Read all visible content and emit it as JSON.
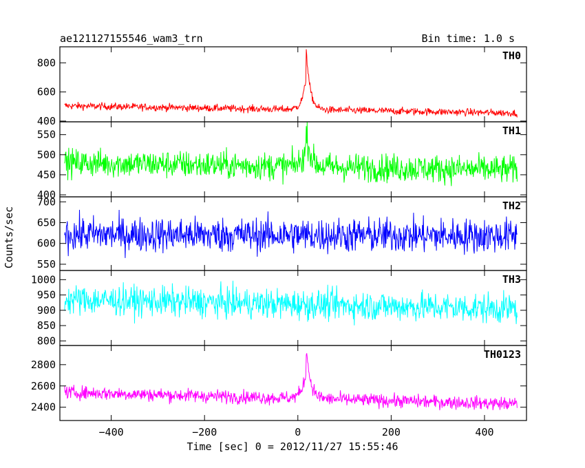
{
  "header": {
    "title": "ae121127155546_wam3_trn",
    "bin_time": "Bin time: 1.0 s"
  },
  "axes": {
    "xlabel": "Time [sec] 0 = 2012/11/27 15:55:46",
    "ylabel": "Counts/sec"
  },
  "chart_data": {
    "type": "line",
    "title": "ae121127155546_wam3_trn",
    "xlabel": "Time [sec] 0 = 2012/11/27 15:55:46",
    "ylabel": "Counts/sec",
    "xlim": [
      -510,
      490
    ],
    "x_ticks": [
      -400,
      -200,
      0,
      200,
      400
    ],
    "x_range_data": [
      -500,
      470
    ],
    "bin_time_s": 1.0,
    "panels": [
      {
        "name": "TH0",
        "color": "#ff0000",
        "ylim": [
          395,
          910
        ],
        "yticks": [
          400,
          600,
          800
        ],
        "baseline_start": 505,
        "baseline_end": 455,
        "noise": 18,
        "peak": {
          "time": 18,
          "value": 900,
          "width": 8
        }
      },
      {
        "name": "TH1",
        "color": "#00ff00",
        "ylim": [
          395,
          582
        ],
        "yticks": [
          400,
          450,
          500,
          550
        ],
        "baseline_start": 480,
        "baseline_end": 462,
        "noise": 25,
        "peak": {
          "time": 18,
          "value": 560,
          "width": 9
        }
      },
      {
        "name": "TH2",
        "color": "#0000ff",
        "ylim": [
          535,
          712
        ],
        "yticks": [
          550,
          600,
          650,
          700
        ],
        "baseline_start": 622,
        "baseline_end": 618,
        "noise": 30,
        "peak": null
      },
      {
        "name": "TH3",
        "color": "#00ffff",
        "ylim": [
          785,
          1030
        ],
        "yticks": [
          800,
          850,
          900,
          950,
          1000
        ],
        "baseline_start": 935,
        "baseline_end": 905,
        "noise": 35,
        "peak": null
      },
      {
        "name": "TH0123",
        "color": "#ff00ff",
        "ylim": [
          2275,
          2980
        ],
        "yticks": [
          2400,
          2600,
          2800
        ],
        "baseline_start": 2540,
        "baseline_end": 2430,
        "noise": 45,
        "peak": {
          "time": 18,
          "value": 2960,
          "width": 9
        }
      }
    ]
  }
}
